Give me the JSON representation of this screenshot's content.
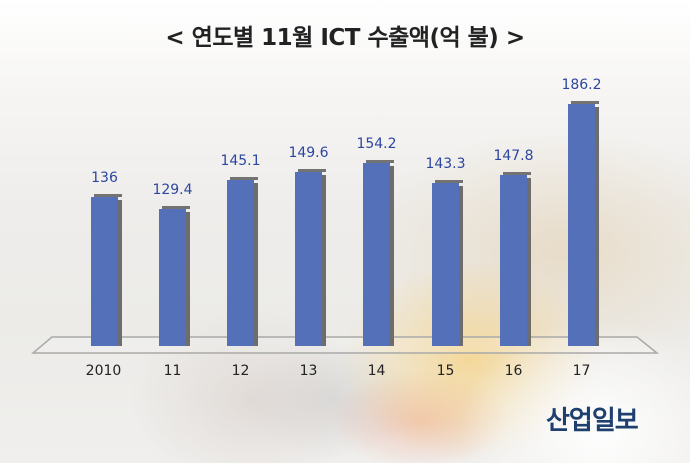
{
  "title": "< 연도별 11월 ICT 수출액(억 불) >",
  "chart_data": {
    "type": "bar",
    "title": "< 연도별 11월 ICT 수출액(억 불) >",
    "xlabel": "",
    "ylabel": "",
    "unit": "억 불",
    "categories": [
      "2010",
      "11",
      "12",
      "13",
      "14",
      "15",
      "16",
      "17"
    ],
    "values": [
      136,
      129.4,
      145.1,
      149.6,
      154.2,
      143.3,
      147.8,
      186.2
    ],
    "value_labels": [
      "136",
      "129.4",
      "145.1",
      "149.6",
      "154.2",
      "143.3",
      "147.8",
      "186.2"
    ],
    "grid": false,
    "legend": null,
    "bar_color": "#5470b9",
    "label_color": "#2d46a0"
  },
  "logo": "산업일보"
}
